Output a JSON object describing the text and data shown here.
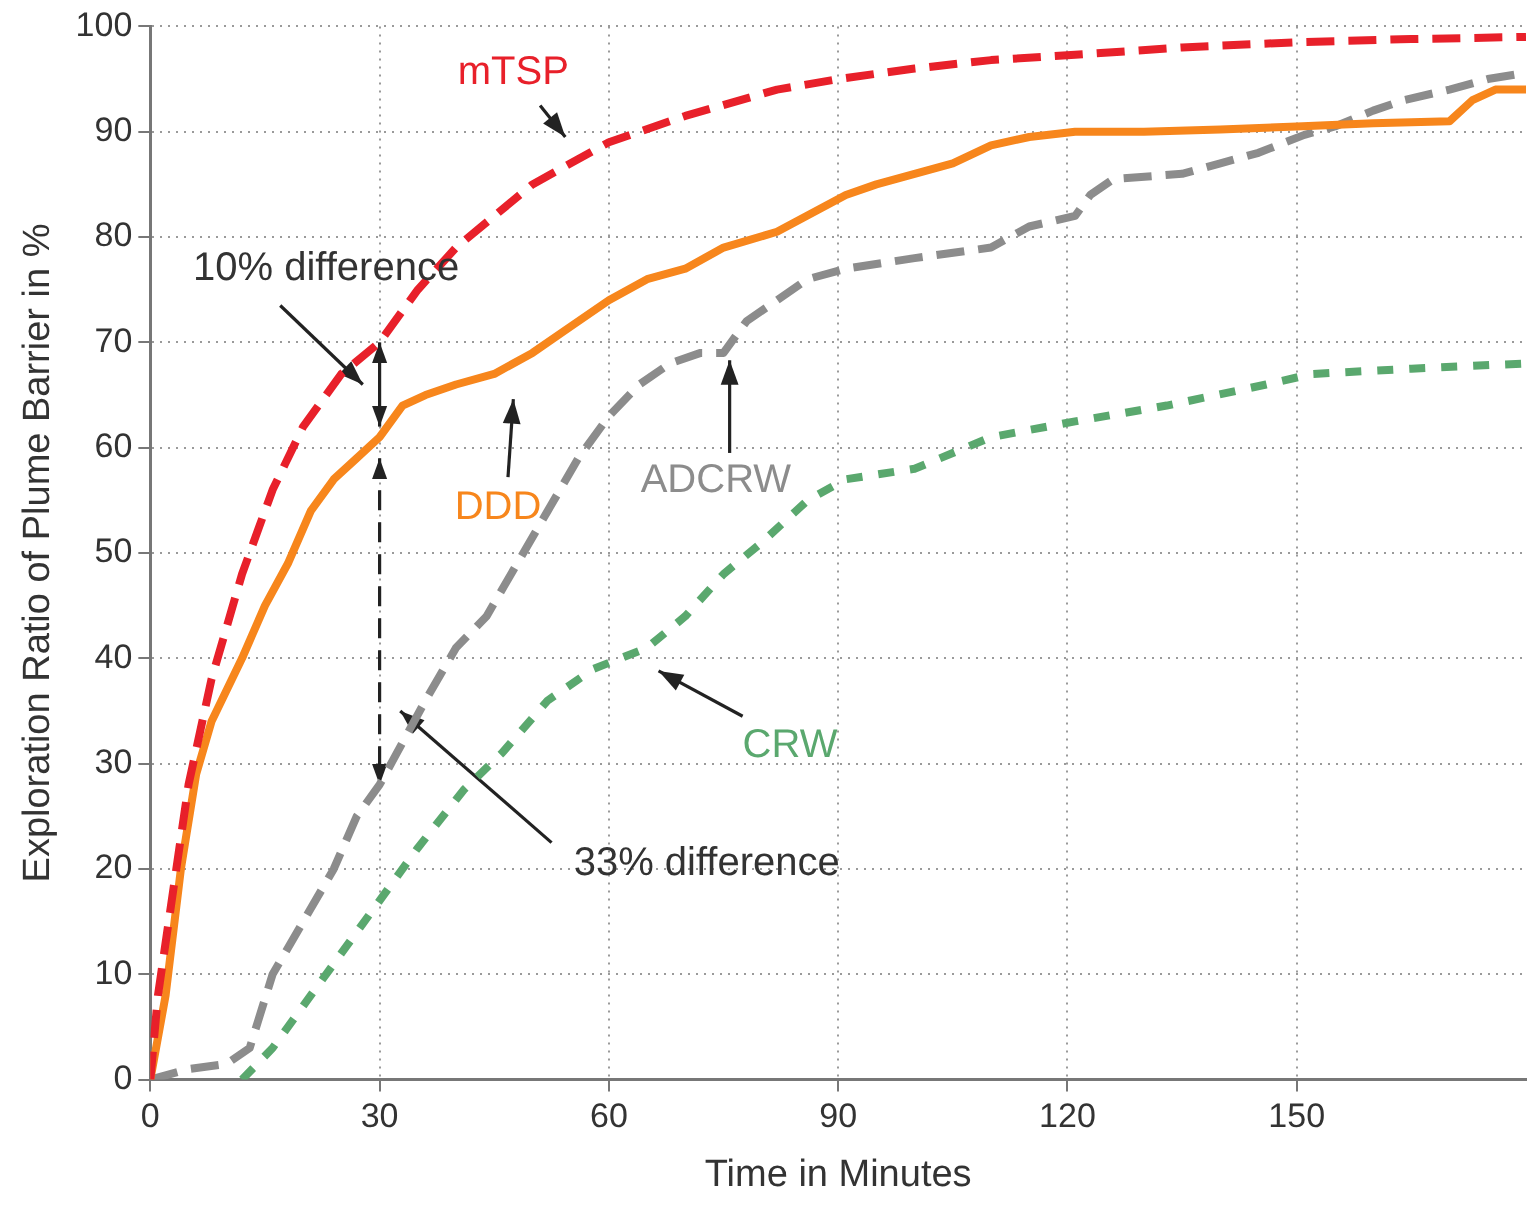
{
  "chart_data": {
    "type": "line",
    "xlabel": "Time in Minutes",
    "ylabel": "Exploration Ratio of Plume Barrier in %",
    "xlim": [
      0,
      180
    ],
    "xticks": [
      0,
      30,
      60,
      90,
      120,
      150
    ],
    "ylim": [
      0,
      100
    ],
    "yticks": [
      0,
      10,
      20,
      30,
      40,
      50,
      60,
      70,
      80,
      90,
      100
    ],
    "grid": true,
    "legend": false,
    "marker": "none",
    "annotations": [
      "10% difference",
      "33% difference"
    ],
    "series": [
      {
        "name": "mTSP",
        "color": "#e8202a",
        "line_style": "dashed",
        "x": [
          0,
          1,
          3,
          5,
          8,
          12,
          16,
          20,
          25,
          30,
          35,
          40,
          45,
          50,
          55,
          60,
          70,
          82,
          90,
          100,
          110,
          121,
          135,
          150,
          165,
          180
        ],
        "values": [
          0,
          8,
          18,
          28,
          38,
          48,
          56,
          62,
          67,
          70,
          75,
          79,
          82,
          85,
          87,
          89,
          91.5,
          94,
          95,
          96,
          96.8,
          97.3,
          98,
          98.5,
          98.8,
          99
        ]
      },
      {
        "name": "DDD",
        "color": "#f7861c",
        "line_style": "solid",
        "x": [
          0,
          2,
          4,
          6,
          8,
          12,
          15,
          18,
          21,
          24,
          27,
          30,
          33,
          36,
          40,
          45,
          50,
          55,
          60,
          65,
          70,
          75,
          82,
          91,
          95,
          100,
          105,
          110,
          115,
          121,
          130,
          140,
          150,
          160,
          170,
          173,
          176,
          180
        ],
        "values": [
          0,
          8,
          20,
          29,
          34,
          40,
          45,
          49,
          54,
          57,
          59,
          61,
          64,
          65,
          66,
          67,
          69,
          71.5,
          74,
          76,
          77,
          79,
          80.5,
          84,
          85,
          86,
          87,
          88.7,
          89.5,
          90,
          90,
          90.2,
          90.5,
          90.8,
          91,
          93,
          94,
          94
        ]
      },
      {
        "name": "ADCRW",
        "color": "#8c8c8c",
        "line_style": "dashed",
        "x": [
          0,
          5,
          10,
          13,
          16,
          20,
          24,
          27,
          30,
          33,
          36,
          40,
          44,
          48,
          52,
          56,
          60,
          64,
          68,
          72,
          75,
          78,
          82,
          86,
          91,
          100,
          110,
          115,
          121,
          123,
          126,
          135,
          140,
          145,
          151,
          155,
          160,
          164,
          170,
          175,
          180
        ],
        "values": [
          0,
          1,
          1.5,
          3,
          10,
          15,
          20,
          25,
          28,
          32,
          36,
          41,
          44,
          49,
          54,
          59,
          63,
          66,
          68,
          69,
          69,
          72,
          74,
          76,
          77,
          78,
          79,
          81,
          82,
          84,
          85.5,
          86,
          87,
          88,
          89.7,
          90.5,
          92,
          93,
          94,
          95,
          95.6
        ]
      },
      {
        "name": "CRW",
        "color": "#5aa86e",
        "line_style": "dotted",
        "x": [
          12,
          16,
          20,
          25,
          30,
          35,
          41,
          46,
          52,
          58,
          65,
          70,
          75,
          80,
          86,
          91,
          100,
          110,
          121,
          133,
          146,
          152,
          165,
          180
        ],
        "values": [
          0,
          3,
          7,
          12,
          17,
          22,
          27.5,
          31,
          36,
          39,
          41,
          44,
          48,
          51,
          55,
          57,
          58,
          61,
          62.5,
          64,
          66,
          67,
          67.5,
          68
        ]
      }
    ]
  }
}
